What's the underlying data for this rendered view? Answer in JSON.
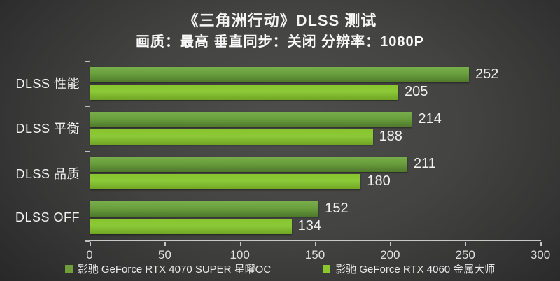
{
  "chart_data": {
    "type": "bar",
    "orientation": "horizontal",
    "title": "《三角洲行动》DLSS 测试",
    "subtitle": "画质：最高 垂直同步：关闭 分辨率：1080P",
    "categories": [
      "DLSS 性能",
      "DLSS 平衡",
      "DLSS 品质",
      "DLSS OFF"
    ],
    "series": [
      {
        "name": "影驰 GeForce RTX 4070 SUPER 星曜OC",
        "values": [
          252,
          214,
          211,
          152
        ],
        "color_top": "#79ae4c",
        "color_mid": "#699e3d",
        "color_bottom": "#4e782b",
        "legend_color": "#6f9f3a"
      },
      {
        "name": "影驰 GeForce RTX 4060 金属大师",
        "values": [
          205,
          188,
          180,
          134
        ],
        "color_top": "#87c42c",
        "color_mid": "#8cc938",
        "color_bottom": "#6fa424",
        "legend_color": "#8bc72f"
      }
    ],
    "xlim": [
      0,
      300
    ],
    "xticks": [
      0,
      50,
      100,
      150,
      200,
      250,
      300
    ],
    "grid": false,
    "value_labels": true,
    "legend_position": "bottom"
  },
  "colors": {
    "background_center": "#4e4e4c",
    "background_edge": "#262626",
    "axis": "#c8c8c8",
    "title_text": "#f5f5f5",
    "tick_label": "#e0e0e0",
    "value_label": "#f2f2f2"
  }
}
